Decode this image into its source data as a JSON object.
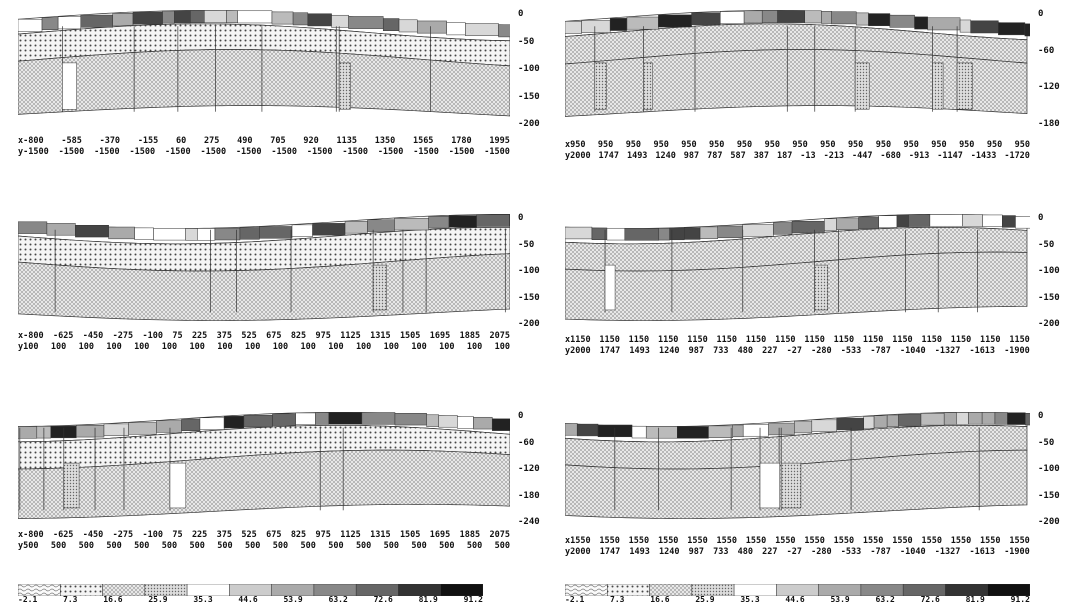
{
  "panels": [
    {
      "depth_ticks": [
        "0",
        "-50",
        "-100",
        "-150",
        "-200"
      ],
      "x_row": [
        "x-800",
        "-585",
        "-370",
        "-155",
        "60",
        "275",
        "490",
        "705",
        "920",
        "1135",
        "1350",
        "1565",
        "1780",
        "1995"
      ],
      "y_row": [
        "y-1500",
        "-1500",
        "-1500",
        "-1500",
        "-1500",
        "-1500",
        "-1500",
        "-1500",
        "-1500",
        "-1500",
        "-1500",
        "-1500",
        "-1500",
        "-1500"
      ]
    },
    {
      "depth_ticks": [
        "0",
        "-60",
        "-120",
        "-180"
      ],
      "x_row": [
        "x950",
        "950",
        "950",
        "950",
        "950",
        "950",
        "950",
        "950",
        "950",
        "950",
        "950",
        "950",
        "950",
        "950",
        "950",
        "950",
        "950"
      ],
      "y_row": [
        "y2000",
        "1747",
        "1493",
        "1240",
        "987",
        "787",
        "587",
        "387",
        "187",
        "-13",
        "-213",
        "-447",
        "-680",
        "-913",
        "-1147",
        "-1433",
        "-1720"
      ]
    },
    {
      "depth_ticks": [
        "0",
        "-50",
        "-100",
        "-150",
        "-200"
      ],
      "x_row": [
        "x-800",
        "-625",
        "-450",
        "-275",
        "-100",
        "75",
        "225",
        "375",
        "525",
        "675",
        "825",
        "975",
        "1125",
        "1315",
        "1505",
        "1695",
        "1885",
        "2075"
      ],
      "y_row": [
        "y100",
        "100",
        "100",
        "100",
        "100",
        "100",
        "100",
        "100",
        "100",
        "100",
        "100",
        "100",
        "100",
        "100",
        "100",
        "100",
        "100",
        "100"
      ]
    },
    {
      "depth_ticks": [
        "0",
        "-50",
        "-100",
        "-150",
        "-200"
      ],
      "x_row": [
        "x1150",
        "1150",
        "1150",
        "1150",
        "1150",
        "1150",
        "1150",
        "1150",
        "1150",
        "1150",
        "1150",
        "1150",
        "1150",
        "1150",
        "1150",
        "1150"
      ],
      "y_row": [
        "y2000",
        "1747",
        "1493",
        "1240",
        "987",
        "733",
        "480",
        "227",
        "-27",
        "-280",
        "-533",
        "-787",
        "-1040",
        "-1327",
        "-1613",
        "-1900"
      ]
    },
    {
      "depth_ticks": [
        "0",
        "-60",
        "-120",
        "-180",
        "-240"
      ],
      "x_row": [
        "x-800",
        "-625",
        "-450",
        "-275",
        "-100",
        "75",
        "225",
        "375",
        "525",
        "675",
        "825",
        "975",
        "1125",
        "1315",
        "1505",
        "1695",
        "1885",
        "2075"
      ],
      "y_row": [
        "y500",
        "500",
        "500",
        "500",
        "500",
        "500",
        "500",
        "500",
        "500",
        "500",
        "500",
        "500",
        "500",
        "500",
        "500",
        "500",
        "500",
        "500"
      ]
    },
    {
      "depth_ticks": [
        "0",
        "-50",
        "-100",
        "-150",
        "-200"
      ],
      "x_row": [
        "x1550",
        "1550",
        "1550",
        "1550",
        "1550",
        "1550",
        "1550",
        "1550",
        "1550",
        "1550",
        "1550",
        "1550",
        "1550",
        "1550",
        "1550",
        "1550"
      ],
      "y_row": [
        "y2000",
        "1747",
        "1493",
        "1240",
        "987",
        "733",
        "480",
        "227",
        "-27",
        "-280",
        "-533",
        "-787",
        "-1040",
        "-1327",
        "-1613",
        "-1900"
      ]
    }
  ],
  "legends": [
    {
      "labels": [
        "-2.1",
        "7.3",
        "16.6",
        "25.9",
        "35.3",
        "44.6",
        "53.9",
        "63.2",
        "72.6",
        "81.9",
        "91.2"
      ]
    },
    {
      "labels": [
        "-2.1",
        "7.3",
        "16.6",
        "25.9",
        "35.3",
        "44.6",
        "53.9",
        "63.2",
        "72.6",
        "81.9",
        "91.2"
      ]
    }
  ]
}
